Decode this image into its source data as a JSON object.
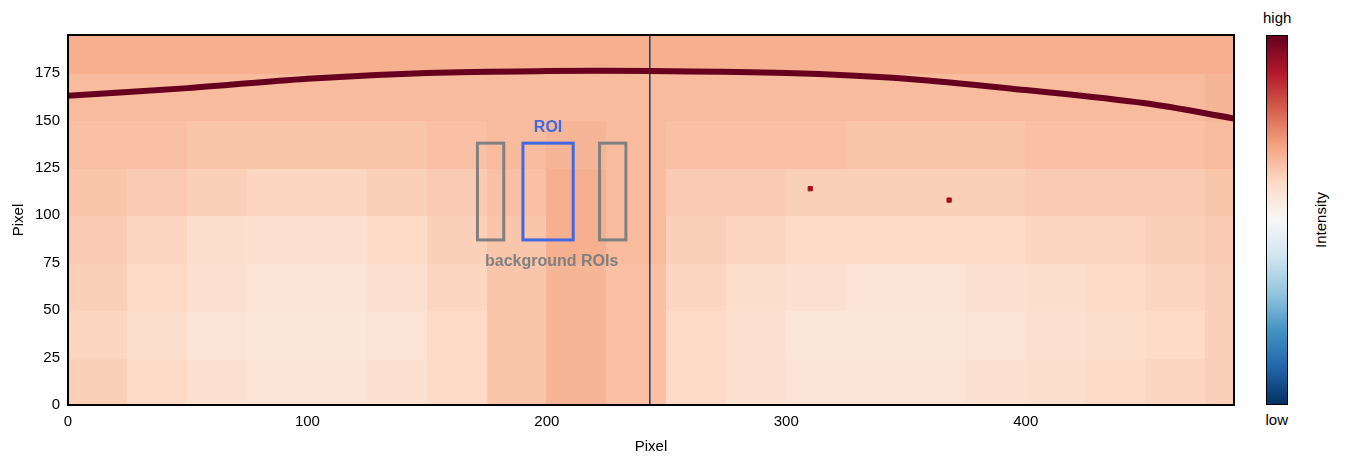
{
  "chart_data": {
    "type": "heatmap",
    "xlabel": "Pixel",
    "ylabel": "Pixel",
    "xlim": [
      0,
      487
    ],
    "ylim": [
      0,
      195
    ],
    "xticks": [
      0,
      100,
      200,
      300,
      400
    ],
    "yticks": [
      0,
      25,
      50,
      75,
      100,
      125,
      150,
      175
    ],
    "grid": false,
    "x_edges": [
      0,
      25,
      50,
      75,
      100,
      125,
      150,
      175,
      200,
      225,
      250,
      275,
      300,
      325,
      350,
      375,
      400,
      425,
      450,
      475,
      487
    ],
    "y_edges": [
      0,
      25,
      50,
      75,
      100,
      125,
      150,
      175,
      195
    ],
    "cells": [
      [
        0.62,
        0.6,
        0.58,
        0.57,
        0.57,
        0.58,
        0.6,
        0.64,
        0.67,
        0.65,
        0.6,
        0.58,
        0.57,
        0.57,
        0.57,
        0.58,
        0.59,
        0.6,
        0.61,
        0.62
      ],
      [
        0.61,
        0.59,
        0.57,
        0.56,
        0.56,
        0.57,
        0.6,
        0.64,
        0.67,
        0.65,
        0.6,
        0.58,
        0.56,
        0.56,
        0.56,
        0.57,
        0.58,
        0.59,
        0.6,
        0.62
      ],
      [
        0.62,
        0.6,
        0.58,
        0.57,
        0.57,
        0.58,
        0.61,
        0.64,
        0.67,
        0.65,
        0.61,
        0.59,
        0.58,
        0.57,
        0.57,
        0.58,
        0.59,
        0.6,
        0.61,
        0.62
      ],
      [
        0.63,
        0.61,
        0.59,
        0.58,
        0.58,
        0.6,
        0.62,
        0.64,
        0.68,
        0.66,
        0.62,
        0.61,
        0.6,
        0.6,
        0.6,
        0.6,
        0.61,
        0.61,
        0.62,
        0.63
      ],
      [
        0.64,
        0.63,
        0.62,
        0.61,
        0.61,
        0.62,
        0.63,
        0.65,
        0.68,
        0.66,
        0.63,
        0.63,
        0.62,
        0.62,
        0.62,
        0.62,
        0.63,
        0.63,
        0.63,
        0.64
      ],
      [
        0.65,
        0.65,
        0.64,
        0.64,
        0.64,
        0.64,
        0.65,
        0.66,
        0.67,
        0.66,
        0.65,
        0.65,
        0.65,
        0.64,
        0.64,
        0.64,
        0.65,
        0.65,
        0.65,
        0.66
      ],
      [
        0.66,
        0.66,
        0.66,
        0.66,
        0.66,
        0.66,
        0.66,
        0.66,
        0.66,
        0.66,
        0.66,
        0.66,
        0.66,
        0.66,
        0.66,
        0.66,
        0.66,
        0.66,
        0.66,
        0.67
      ],
      [
        0.68,
        0.68,
        0.68,
        0.68,
        0.68,
        0.68,
        0.68,
        0.68,
        0.68,
        0.68,
        0.68,
        0.68,
        0.68,
        0.68,
        0.68,
        0.68,
        0.68,
        0.68,
        0.68,
        0.68
      ]
    ],
    "colorbar": {
      "label": "Intensity",
      "range": [
        0,
        1
      ],
      "ticks": [
        {
          "value": 0,
          "label": "low"
        },
        {
          "value": 1,
          "label": "high"
        }
      ]
    },
    "series": [
      {
        "type": "line",
        "color": "#67001f",
        "x": [
          0,
          50,
          100,
          150,
          200,
          243,
          300,
          350,
          400,
          450,
          487
        ],
        "values": [
          163,
          167,
          172,
          175,
          176,
          176,
          175,
          172,
          166,
          159,
          151
        ]
      },
      {
        "type": "line",
        "color": "#1f3a68",
        "x": [
          243,
          243
        ],
        "values": [
          0,
          195
        ]
      },
      {
        "type": "scatter",
        "color": "#a50f15",
        "marker": "square",
        "x": [
          310,
          368
        ],
        "values": [
          114,
          108
        ]
      }
    ],
    "rois": [
      {
        "label": "ROI",
        "color": "#4169e1",
        "boxes": [
          {
            "x": [
              190,
              211
            ],
            "y": [
              87,
              138
            ]
          }
        ]
      },
      {
        "label": "background ROIs",
        "color": "#808080",
        "boxes": [
          {
            "x": [
              171,
              182
            ],
            "y": [
              87,
              138
            ]
          },
          {
            "x": [
              222,
              233
            ],
            "y": [
              87,
              138
            ]
          }
        ]
      }
    ]
  }
}
